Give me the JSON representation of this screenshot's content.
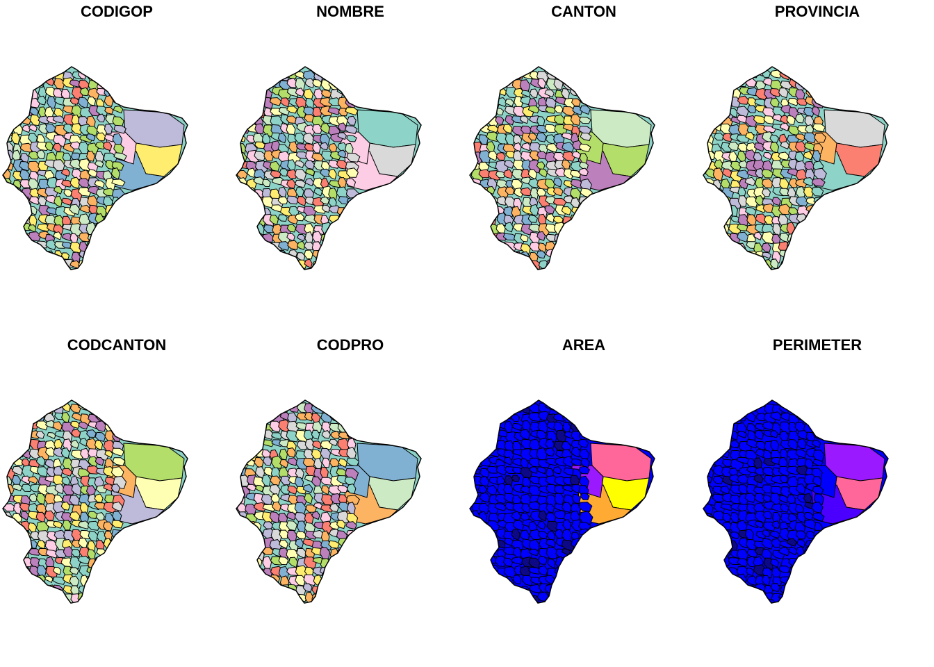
{
  "figure": {
    "panels": [
      {
        "title": "CODIGOP",
        "palette": "categorical"
      },
      {
        "title": "NOMBRE",
        "palette": "categorical"
      },
      {
        "title": "CANTON",
        "palette": "categorical"
      },
      {
        "title": "PROVINCIA",
        "palette": "categorical"
      },
      {
        "title": "CODCANTON",
        "palette": "categorical"
      },
      {
        "title": "CODPRO",
        "palette": "categorical"
      },
      {
        "title": "AREA",
        "palette": "sequential"
      },
      {
        "title": "PERIMETER",
        "palette": "sequential"
      }
    ]
  },
  "colors": {
    "categorical": [
      "#8dd3c7",
      "#ffffb3",
      "#bebada",
      "#fb8072",
      "#80b1d3",
      "#fdb462",
      "#b3de69",
      "#fccde5",
      "#d9d9d9",
      "#bc80bd",
      "#ccebc5",
      "#ffed6f"
    ],
    "sequential": [
      "#0d0887",
      "#0000ff",
      "#4b00ff",
      "#9a19ff",
      "#e633e6",
      "#ff6699",
      "#ffaa33",
      "#ffff00"
    ],
    "border": "#000000",
    "background": "#ffffff"
  }
}
